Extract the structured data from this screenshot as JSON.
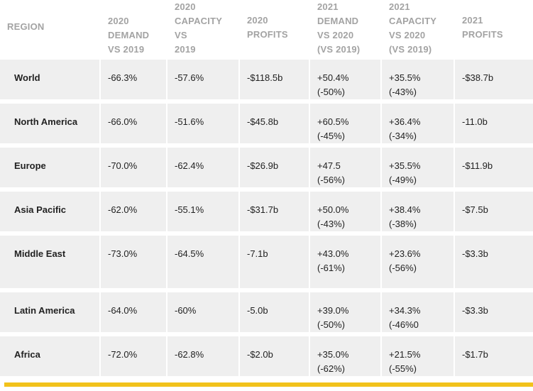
{
  "headers": [
    "REGION",
    "2020\nDEMAND\nVS 2019",
    "2020\nCAPACITY VS\n2019",
    "2020\nPROFITS",
    "2021\nDEMAND\nVS 2020\n(VS 2019)",
    "2021\nCAPACITY\nVS 2020\n(VS 2019)",
    "2021\nPROFITS"
  ],
  "rows": [
    [
      "World",
      "-66.3%",
      "-57.6%",
      "-$118.5b",
      "+50.4%\n(-50%)",
      "+35.5%\n(-43%)",
      "-$38.7b"
    ],
    [
      "North America",
      "-66.0%",
      "-51.6%",
      "-$45.8b",
      "+60.5%\n(-45%)",
      "+36.4%\n(-34%)",
      "-11.0b"
    ],
    [
      "Europe",
      "-70.0%",
      "-62.4%",
      "-$26.9b",
      "+47.5\n(-56%)",
      "+35.5%\n(-49%)",
      "-$11.9b"
    ],
    [
      "Asia Pacific",
      "-62.0%",
      "-55.1%",
      "-$31.7b",
      "+50.0%\n(-43%)",
      "+38.4%\n(-38%)",
      "-$7.5b"
    ],
    [
      "Middle East",
      "-73.0%",
      "-64.5%",
      "-7.1b",
      "+43.0%\n(-61%)",
      "+23.6%\n(-56%)",
      "-$3.3b"
    ],
    [
      "Latin America",
      "-64.0%",
      "-60%",
      "-5.0b",
      "+39.0%\n(-50%)",
      "+34.3%\n(-46%0",
      "-$3.3b"
    ],
    [
      "Africa",
      "-72.0%",
      "-62.8%",
      "-$2.0b",
      "+35.0%\n(-62%)",
      "+21.5%\n(-55%)",
      "-$1.7b"
    ]
  ],
  "accent_color": "#f2c21b"
}
